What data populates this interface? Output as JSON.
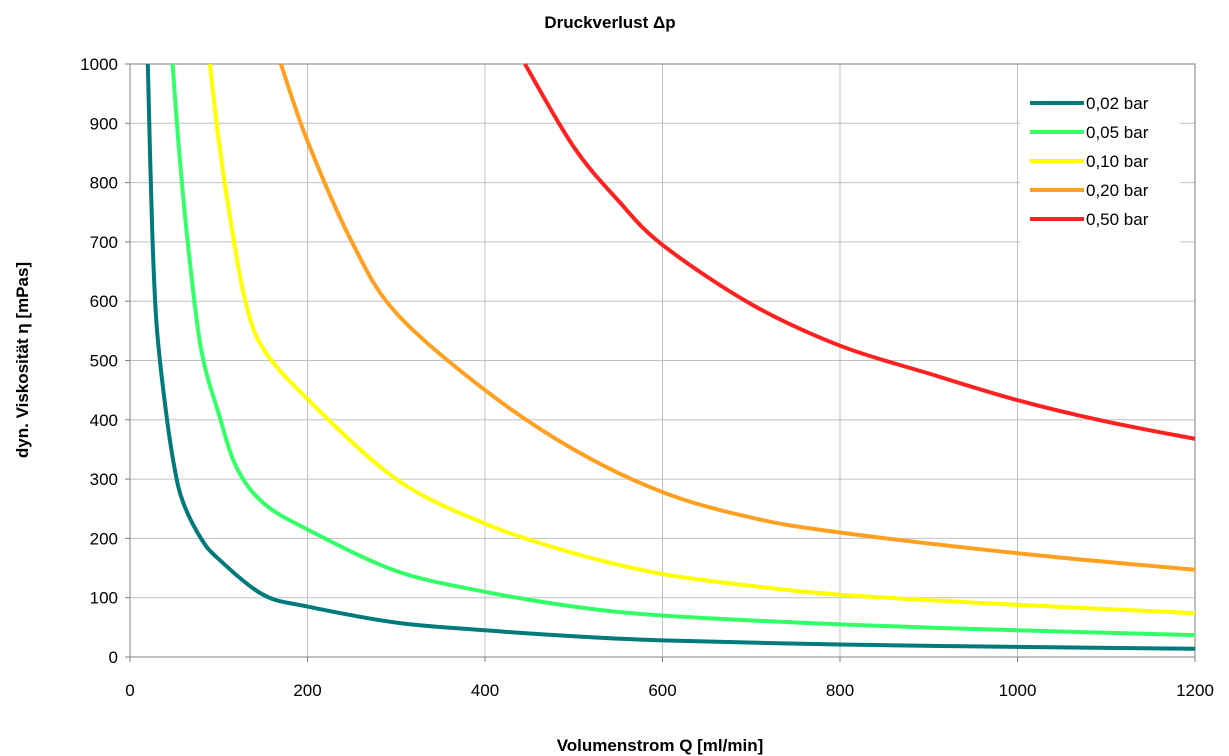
{
  "chart_data": {
    "type": "line",
    "title": "Druckverlust Δp",
    "xlabel": "Volumenstrom Q [ml/min]",
    "ylabel": "dyn. Viskosität η [mPas]",
    "xlim": [
      0,
      1200
    ],
    "ylim": [
      0,
      1000
    ],
    "xticks": [
      0,
      200,
      400,
      600,
      800,
      1000,
      1200
    ],
    "yticks": [
      0,
      100,
      200,
      300,
      400,
      500,
      600,
      700,
      800,
      900,
      1000
    ],
    "grid": true,
    "legend_position": "top-right",
    "series": [
      {
        "name": "0,02 bar",
        "color": "#007a7a",
        "x": [
          20,
          25,
          30,
          40,
          50,
          60,
          80,
          100,
          150,
          200,
          300,
          400,
          500,
          600,
          800,
          1000,
          1200
        ],
        "y": [
          1000,
          720,
          560,
          420,
          320,
          260,
          200,
          165,
          105,
          85,
          58,
          45,
          35,
          28,
          21,
          17,
          14
        ]
      },
      {
        "name": "0,05 bar",
        "color": "#33ff66",
        "x": [
          48,
          55,
          65,
          80,
          100,
          120,
          150,
          200,
          300,
          400,
          500,
          600,
          800,
          1000,
          1200
        ],
        "y": [
          1000,
          860,
          700,
          520,
          410,
          320,
          260,
          215,
          145,
          110,
          85,
          70,
          55,
          45,
          37
        ]
      },
      {
        "name": "0,10 bar",
        "color": "#ffff00",
        "x": [
          90,
          100,
          115,
          130,
          150,
          200,
          300,
          400,
          500,
          600,
          700,
          800,
          1000,
          1200
        ],
        "y": [
          1000,
          870,
          720,
          600,
          520,
          435,
          300,
          225,
          175,
          140,
          120,
          105,
          88,
          74
        ]
      },
      {
        "name": "0,20 bar",
        "color": "#ffa020",
        "x": [
          170,
          200,
          250,
          300,
          400,
          500,
          600,
          700,
          800,
          1000,
          1200
        ],
        "y": [
          1000,
          870,
          700,
          580,
          450,
          350,
          278,
          235,
          210,
          175,
          147
        ]
      },
      {
        "name": "0,50 bar",
        "color": "#ff2020",
        "x": [
          445,
          500,
          550,
          600,
          700,
          800,
          900,
          1000,
          1100,
          1200
        ],
        "y": [
          1000,
          860,
          770,
          695,
          595,
          525,
          478,
          433,
          397,
          368
        ]
      }
    ]
  }
}
